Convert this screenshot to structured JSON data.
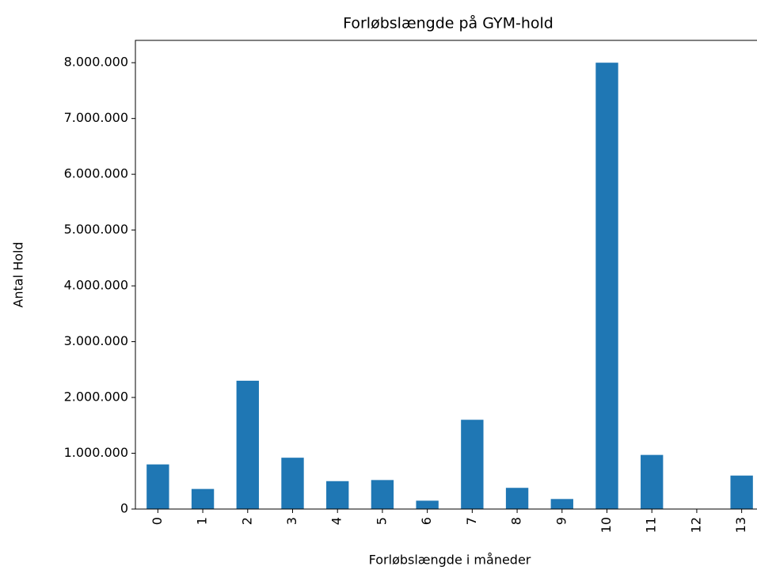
{
  "chart_data": {
    "type": "bar",
    "title": "Forløbslængde på GYM-hold",
    "xlabel": "Forløbslængde i måneder",
    "ylabel": "Antal Hold",
    "categories": [
      "0",
      "1",
      "2",
      "3",
      "4",
      "5",
      "6",
      "7",
      "8",
      "9",
      "10",
      "11",
      "12",
      "13"
    ],
    "values": [
      800000,
      360000,
      2300000,
      920000,
      500000,
      520000,
      150000,
      1600000,
      380000,
      180000,
      8000000,
      970000,
      0,
      600000
    ],
    "color": "#1f77b4",
    "ylim": [
      0,
      8400000
    ],
    "yticks": [
      0,
      {
        "value": 1000000,
        "label": "1.000.000"
      },
      {
        "value": 2000000,
        "label": "2.000.000"
      },
      {
        "value": 3000000,
        "label": "3.000.000"
      },
      {
        "value": 4000000,
        "label": "4.000.000"
      },
      {
        "value": 5000000,
        "label": "5.000.000"
      },
      {
        "value": 6000000,
        "label": "6.000.000"
      },
      {
        "value": 7000000,
        "label": "7.000.000"
      },
      {
        "value": 8000000,
        "label": "8.000.000"
      }
    ],
    "grid": false
  }
}
